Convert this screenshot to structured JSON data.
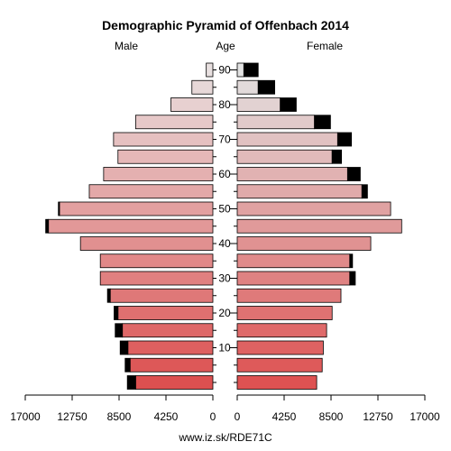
{
  "chart_data": {
    "type": "bar",
    "title": "Demographic Pyramid of Offenbach 2014",
    "left_label": "Male",
    "center_label": "Age",
    "right_label": "Female",
    "source": "www.iz.sk/RDE71C",
    "x_tick_labels_left": [
      "17000",
      "12750",
      "8500",
      "4250",
      "0"
    ],
    "x_tick_labels_right": [
      "0",
      "4250",
      "8500",
      "12750",
      "17000"
    ],
    "age_tick_labels": [
      "10",
      "20",
      "30",
      "40",
      "50",
      "60",
      "70",
      "80",
      "90"
    ],
    "xlim": [
      0,
      17000
    ],
    "age_groups": [
      "0-4",
      "5-9",
      "10-14",
      "15-19",
      "20-24",
      "25-29",
      "30-34",
      "35-39",
      "40-44",
      "45-49",
      "50-54",
      "55-59",
      "60-64",
      "65-69",
      "70-74",
      "75-79",
      "80-84",
      "85-89",
      "90+"
    ],
    "series": [
      {
        "name": "Male",
        "values": [
          7000,
          7500,
          7700,
          8200,
          8600,
          9300,
          10200,
          10200,
          12000,
          14900,
          13900,
          11200,
          9900,
          8600,
          9000,
          7000,
          3800,
          1900,
          600
        ],
        "excess": [
          750,
          450,
          700,
          650,
          350,
          250,
          0,
          0,
          0,
          250,
          100,
          0,
          0,
          0,
          0,
          0,
          0,
          0,
          0
        ]
      },
      {
        "name": "Female",
        "values": [
          7200,
          7700,
          7800,
          8100,
          8600,
          9400,
          10200,
          10200,
          12100,
          14900,
          13900,
          11300,
          10000,
          8600,
          9100,
          7000,
          3900,
          1900,
          600
        ],
        "excess": [
          0,
          0,
          0,
          0,
          0,
          0,
          500,
          250,
          0,
          0,
          0,
          500,
          1150,
          850,
          1250,
          1450,
          1450,
          1500,
          1300
        ]
      }
    ]
  }
}
